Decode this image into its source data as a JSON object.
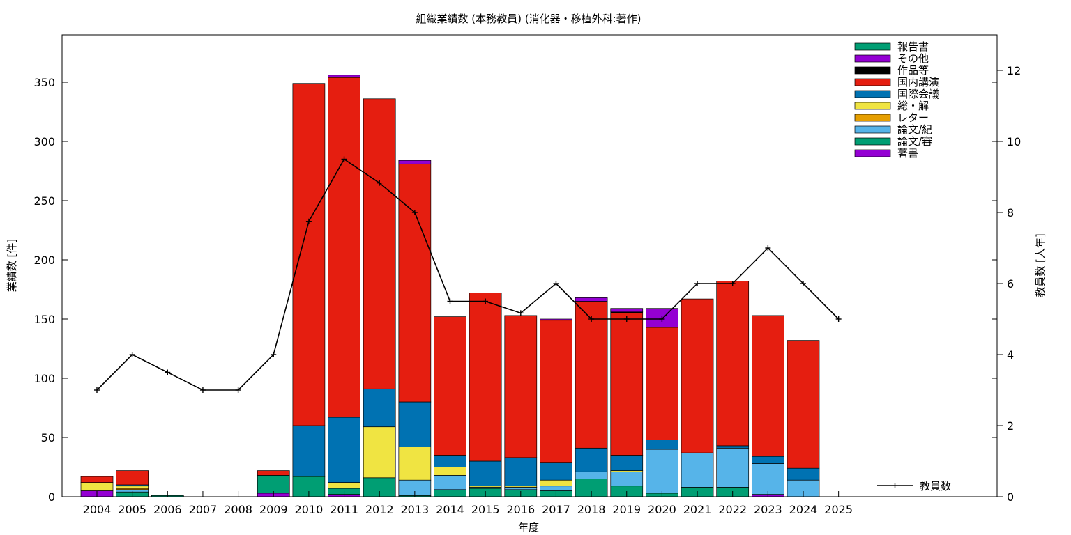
{
  "chart_data": {
    "type": "bar",
    "stacked": true,
    "title": "組織業績数 (本務教員) (消化器・移植外科:著作)",
    "xlabel": "年度",
    "ylabel": "業績数 [件]",
    "y2label": "教員数 [人年]",
    "ylim": [
      0,
      390
    ],
    "y2lim": [
      0,
      13
    ],
    "yticks": [
      0,
      50,
      100,
      150,
      200,
      250,
      300,
      350
    ],
    "y2ticks": [
      0,
      2,
      4,
      6,
      8,
      10,
      12
    ],
    "grid": false,
    "legend_position": "top-right",
    "categories": [
      "2004",
      "2005",
      "2006",
      "2007",
      "2008",
      "2009",
      "2010",
      "2011",
      "2012",
      "2013",
      "2014",
      "2015",
      "2016",
      "2017",
      "2018",
      "2019",
      "2020",
      "2021",
      "2022",
      "2023",
      "2024",
      "2025"
    ],
    "series": [
      {
        "name": "著書",
        "color": "#9400d3",
        "values": [
          5,
          0,
          0,
          0,
          0,
          3,
          0,
          2,
          0,
          0,
          0,
          0,
          0,
          0,
          0,
          0,
          0,
          0,
          0,
          2,
          0,
          0
        ]
      },
      {
        "name": "論文/審",
        "color": "#009e73",
        "values": [
          0,
          4,
          1,
          0,
          0,
          15,
          17,
          5,
          16,
          1,
          6,
          7,
          6,
          5,
          15,
          9,
          3,
          8,
          8,
          0,
          0,
          0
        ]
      },
      {
        "name": "論文/紀",
        "color": "#56b4e9",
        "values": [
          0,
          2,
          0,
          0,
          0,
          0,
          0,
          0,
          0,
          13,
          12,
          1,
          2,
          4,
          6,
          12,
          37,
          29,
          33,
          26,
          14,
          0
        ]
      },
      {
        "name": "レター",
        "color": "#e69f00",
        "values": [
          0,
          1,
          0,
          0,
          0,
          0,
          0,
          0,
          0,
          0,
          0,
          0,
          0,
          0,
          0,
          0,
          0,
          0,
          0,
          0,
          0,
          0
        ]
      },
      {
        "name": "総・解",
        "color": "#f0e442",
        "values": [
          7,
          2,
          0,
          0,
          0,
          0,
          0,
          5,
          43,
          28,
          7,
          1,
          1,
          5,
          0,
          1,
          0,
          0,
          0,
          0,
          0,
          0
        ]
      },
      {
        "name": "国際会議",
        "color": "#0072b2",
        "values": [
          0,
          1,
          0,
          0,
          0,
          0,
          43,
          55,
          32,
          38,
          10,
          21,
          24,
          15,
          20,
          13,
          8,
          0,
          2,
          6,
          10,
          0
        ]
      },
      {
        "name": "国内講演",
        "color": "#e51e10",
        "values": [
          5,
          12,
          0,
          0,
          0,
          4,
          289,
          287,
          245,
          201,
          117,
          142,
          120,
          120,
          124,
          120,
          95,
          130,
          139,
          119,
          108,
          0
        ]
      },
      {
        "name": "作品等",
        "color": "#000000",
        "values": [
          0,
          0,
          0,
          0,
          0,
          0,
          0,
          0,
          0,
          0,
          0,
          0,
          0,
          0,
          0,
          1,
          0,
          0,
          0,
          0,
          0,
          0
        ]
      },
      {
        "name": "その他",
        "color": "#9400d3",
        "values": [
          0,
          0,
          0,
          0,
          0,
          0,
          0,
          2,
          0,
          3,
          0,
          0,
          0,
          1,
          3,
          3,
          16,
          0,
          0,
          0,
          0,
          0
        ]
      },
      {
        "name": "報告書",
        "color": "#009e73",
        "values": [
          0,
          0,
          0,
          0,
          0,
          0,
          0,
          0,
          0,
          0,
          0,
          0,
          0,
          0,
          0,
          0,
          0,
          0,
          0,
          0,
          0,
          0
        ]
      }
    ],
    "line_series": {
      "name": "教員数",
      "axis": "y2",
      "color": "#000000",
      "values": [
        3,
        4,
        3.5,
        3,
        3,
        4,
        7.75,
        9.5,
        8.83,
        8,
        5.5,
        5.5,
        5.17,
        6,
        5,
        5,
        5,
        6,
        6,
        7,
        6,
        5
      ]
    }
  }
}
